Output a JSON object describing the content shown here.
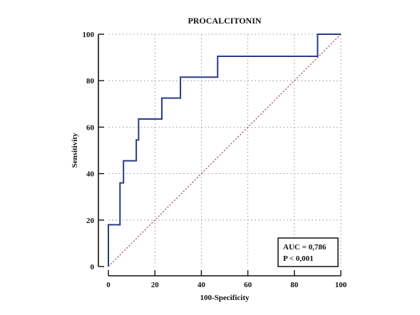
{
  "chart_data": {
    "type": "line",
    "title": "PROCALCITONIN",
    "xlabel": "100-Specificity",
    "ylabel": "Sensitivity",
    "xlim": [
      0,
      100
    ],
    "ylim": [
      0,
      100
    ],
    "x_ticks": [
      0,
      20,
      40,
      60,
      80,
      100
    ],
    "y_ticks": [
      0,
      20,
      40,
      60,
      80,
      100
    ],
    "grid": true,
    "series": [
      {
        "name": "",
        "style": "step",
        "color": "#2b3a8c",
        "points": [
          [
            0,
            0
          ],
          [
            0,
            18
          ],
          [
            5,
            18
          ],
          [
            5,
            36
          ],
          [
            6.5,
            36
          ],
          [
            6.5,
            45.5
          ],
          [
            12,
            45.5
          ],
          [
            12,
            54.5
          ],
          [
            13,
            54.5
          ],
          [
            13,
            63.5
          ],
          [
            23,
            63.5
          ],
          [
            23,
            72.5
          ],
          [
            31,
            72.5
          ],
          [
            31,
            81.5
          ],
          [
            47,
            81.5
          ],
          [
            47,
            90.5
          ],
          [
            90,
            90.5
          ],
          [
            90,
            100
          ],
          [
            100,
            100
          ]
        ]
      },
      {
        "name": "",
        "style": "reference",
        "color": "#a11616",
        "points": [
          [
            0,
            0
          ],
          [
            100,
            100
          ]
        ]
      }
    ],
    "annotation": {
      "lines": [
        "AUC = 0,786",
        "P < 0,001"
      ],
      "placement": "bottom-right"
    }
  }
}
